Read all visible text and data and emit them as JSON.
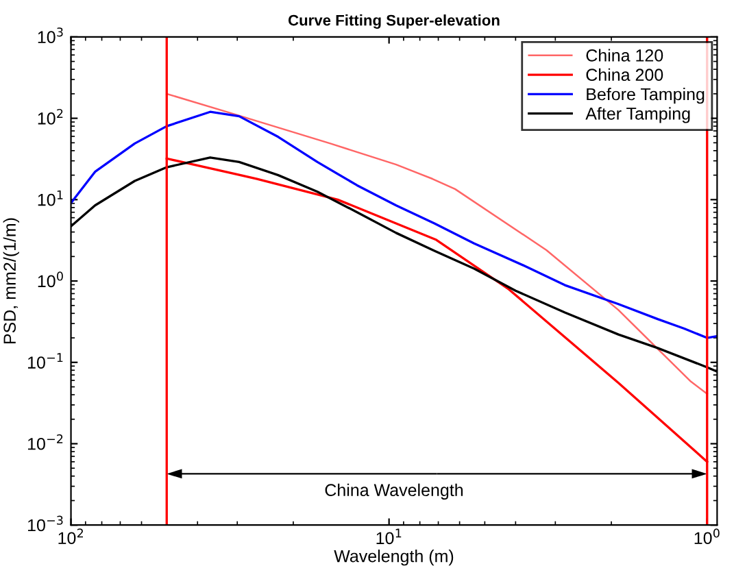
{
  "chart_data": {
    "type": "line",
    "title": "Curve Fitting Super-elevation",
    "xlabel": "Wavelength (m)",
    "ylabel": "PSD, mm2/(1/m)",
    "log": "xy",
    "xlim": [
      100,
      0.93
    ],
    "ylim": [
      0.001,
      1000
    ],
    "xticks": [
      {
        "value": 100,
        "label": "10$^{2}$"
      },
      {
        "value": 10,
        "label": "10$^{1}$"
      },
      {
        "value": 1,
        "label": "10$^{0}$"
      }
    ],
    "yticks": [
      {
        "value": 0.001,
        "label": "10$^{−3}$"
      },
      {
        "value": 0.01,
        "label": "10$^{−2}$"
      },
      {
        "value": 0.1,
        "label": "10$^{−1}$"
      },
      {
        "value": 1,
        "label": "10$^{0}$"
      },
      {
        "value": 10,
        "label": "10$^{1}$"
      },
      {
        "value": 100,
        "label": "10$^{2}$"
      },
      {
        "value": 1000,
        "label": "10$^{3}$"
      }
    ],
    "grid": false,
    "legend": "top right",
    "line_style": "solid",
    "marker": "none",
    "series": [
      {
        "name": "China 120",
        "color": "#ff6666",
        "x": [
          50,
          31,
          15.3,
          9.5,
          7.3,
          6.2,
          3.2,
          1.9,
          1.13,
          1.0
        ],
        "values": [
          200,
          114,
          49,
          27,
          18,
          13.5,
          2.4,
          0.44,
          0.059,
          0.041
        ]
      },
      {
        "name": "China 200",
        "color": "#ff0000",
        "x": [
          50,
          26,
          14.5,
          7.1,
          4.2,
          1.9,
          1.0
        ],
        "values": [
          32,
          18,
          10,
          3.2,
          0.79,
          0.056,
          0.006
        ]
      },
      {
        "name": "Before Tamping",
        "color": "#0000ff",
        "x": [
          100,
          84,
          63,
          50,
          36.5,
          29.6,
          22.3,
          16.8,
          12.6,
          9.5,
          7.2,
          5.4,
          3.7,
          2.8,
          1.9,
          1.43,
          1.18,
          1.0,
          0.93
        ],
        "values": [
          9.1,
          22,
          49,
          80,
          120,
          106,
          59,
          29,
          15,
          8.5,
          5.1,
          2.9,
          1.5,
          0.89,
          0.52,
          0.34,
          0.26,
          0.2,
          0.21
        ]
      },
      {
        "name": "After Tamping",
        "color": "#000000",
        "x": [
          100,
          84,
          63,
          50,
          36.5,
          29.6,
          22.3,
          16.8,
          12.6,
          9.5,
          7.2,
          5.4,
          4.0,
          2.8,
          1.9,
          1.43,
          1.0,
          0.93
        ],
        "values": [
          4.7,
          8.5,
          17,
          25,
          33,
          29,
          20,
          12.5,
          7.0,
          3.9,
          2.35,
          1.42,
          0.76,
          0.41,
          0.22,
          0.15,
          0.087,
          0.077
        ]
      }
    ],
    "ref_lines": [
      {
        "axis": "x",
        "value": 50,
        "color": "#ff0000",
        "line_style": "solid"
      },
      {
        "axis": "x",
        "value": 1,
        "color": "#ff0000",
        "line_style": "solid"
      }
    ],
    "annotations": [
      "China Wavelength"
    ]
  }
}
